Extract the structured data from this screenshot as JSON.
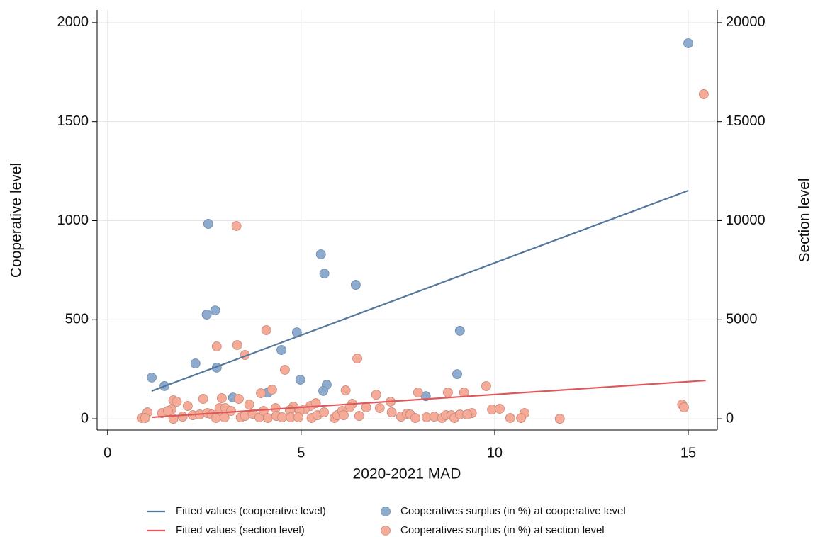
{
  "chart_data": {
    "type": "scatter",
    "x_label": "2020-2021 MAD",
    "y_label": "Cooperative level",
    "y2_label": "Section level",
    "xlim": [
      -0.27,
      15.75
    ],
    "xticks": [
      0,
      5,
      10,
      15
    ],
    "ylim": [
      -57,
      2064
    ],
    "yticks": [
      0,
      500,
      1000,
      1500,
      2000
    ],
    "y2lim": [
      -570,
      20640
    ],
    "y2ticks": [
      0,
      5000,
      10000,
      15000,
      20000
    ],
    "grid": true,
    "series": [
      {
        "name": "Fitted values (cooperative level)",
        "kind": "line",
        "color": "#55779c",
        "x": [
          1.14,
          15.0
        ],
        "values": [
          140,
          1152
        ]
      },
      {
        "name": "Fitted values (section level)",
        "kind": "line",
        "color": "#e0575a",
        "axis": "y2",
        "x": [
          1.14,
          15.45
        ],
        "values": [
          72,
          1932
        ]
      },
      {
        "name": "Cooperatives surplus (in %) at cooperative level",
        "kind": "scatter",
        "color": "#8cabcf",
        "x": [
          1.14,
          1.47,
          2.27,
          2.6,
          2.56,
          2.78,
          2.82,
          3.24,
          4.14,
          4.49,
          4.89,
          4.98,
          5.51,
          5.6,
          5.66,
          5.57,
          6.41,
          8.22,
          9.03,
          9.1,
          15.0
        ],
        "values": [
          208,
          165,
          279,
          984,
          526,
          547,
          258,
          107,
          132,
          347,
          436,
          197,
          830,
          733,
          172,
          140,
          676,
          114,
          225,
          444,
          1896
        ]
      },
      {
        "name": "Cooperatives surplus (in %) at section level",
        "kind": "scatter",
        "color": "#f6ab98",
        "axis": "y2",
        "x": [
          3.33,
          15.4,
          4.1,
          2.82,
          3.35,
          3.55,
          6.45,
          4.58,
          9.78,
          4.25,
          6.15,
          8.02,
          8.79,
          9.21,
          2.47,
          3.39,
          2.95,
          6.94,
          3.96,
          1.7,
          1.79,
          2.07,
          3.66,
          5.24,
          5.38,
          7.31,
          14.84,
          14.89,
          6.32,
          6.68,
          6.25,
          7.03,
          2.89,
          3.04,
          4.8,
          5.09,
          7.34,
          9.93,
          10.13,
          10.77,
          9.41,
          10.4,
          11.68,
          10.68,
          1.65,
          1.41,
          1.03,
          0.88,
          0.97,
          1.56,
          1.7,
          1.94,
          2.2,
          2.38,
          2.58,
          2.69,
          2.8,
          3.02,
          3.19,
          3.44,
          3.55,
          3.75,
          3.92,
          4.03,
          4.14,
          4.34,
          4.36,
          4.51,
          4.71,
          4.73,
          4.96,
          4.93,
          5.27,
          5.42,
          5.59,
          5.86,
          5.93,
          6.06,
          6.1,
          6.5,
          7.58,
          7.73,
          7.82,
          7.95,
          8.24,
          8.44,
          8.64,
          8.74,
          8.88,
          8.96,
          9.1,
          9.29
        ],
        "values": [
          9732,
          16386,
          4472,
          3649,
          3721,
          3220,
          3041,
          2469,
          1646,
          1467,
          1431,
          1324,
          1324,
          1324,
          1002,
          1002,
          1038,
          1216,
          1288,
          930,
          859,
          644,
          716,
          644,
          787,
          859,
          716,
          572,
          751,
          572,
          572,
          537,
          537,
          537,
          608,
          465,
          322,
          465,
          501,
          286,
          286,
          36,
          0,
          36,
          465,
          286,
          322,
          36,
          36,
          394,
          0,
          107,
          179,
          215,
          286,
          215,
          36,
          72,
          394,
          72,
          143,
          250,
          72,
          394,
          36,
          537,
          143,
          72,
          429,
          72,
          394,
          72,
          36,
          179,
          322,
          36,
          179,
          394,
          179,
          143,
          107,
          250,
          215,
          36,
          72,
          107,
          36,
          179,
          179,
          36,
          215,
          215
        ]
      }
    ]
  }
}
